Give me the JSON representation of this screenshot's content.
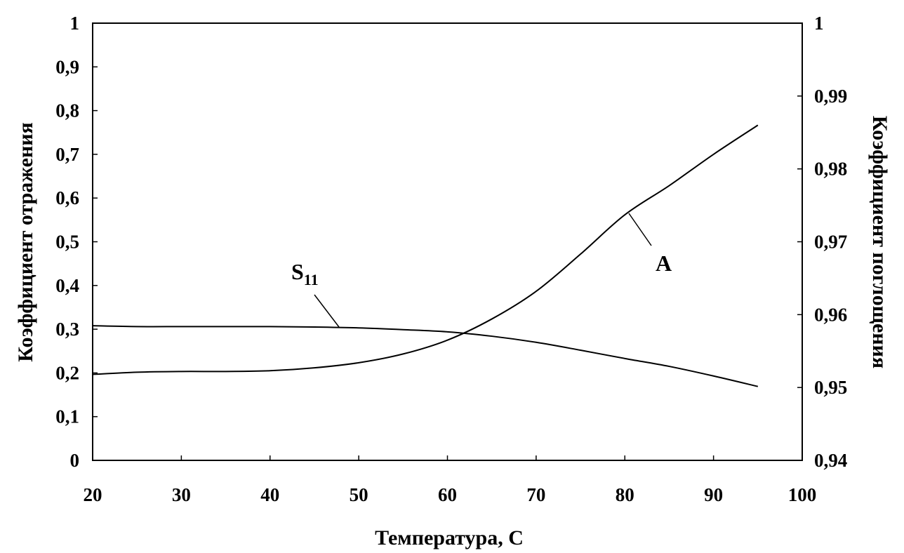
{
  "chart_data": {
    "type": "line",
    "title": "",
    "xlabel": "Температура, С",
    "ylabel": "Коэффициент отражения",
    "y2label": "Коэффициент поглощения",
    "xlim": [
      20,
      100
    ],
    "ylim": [
      0,
      1
    ],
    "y2lim": [
      0.94,
      1
    ],
    "xticks": [
      "20",
      "30",
      "40",
      "50",
      "60",
      "70",
      "80",
      "90",
      "100"
    ],
    "xtick_values": [
      20,
      30,
      40,
      50,
      60,
      70,
      80,
      90,
      100
    ],
    "yticks": [
      "0",
      "0,1",
      "0,2",
      "0,3",
      "0,4",
      "0,5",
      "0,6",
      "0,7",
      "0,8",
      "0,9",
      "1"
    ],
    "ytick_values": [
      0,
      0.1,
      0.2,
      0.3,
      0.4,
      0.5,
      0.6,
      0.7,
      0.8,
      0.9,
      1
    ],
    "y2ticks": [
      "0,94",
      "0,95",
      "0,96",
      "0,97",
      "0,98",
      "0,99",
      "1"
    ],
    "y2tick_values": [
      0.94,
      0.95,
      0.96,
      0.97,
      0.98,
      0.99,
      1
    ],
    "grid": false,
    "series": [
      {
        "name": "S11",
        "label_main": "S",
        "label_sub": "11",
        "axis": "left",
        "x": [
          20,
          25,
          30,
          35,
          40,
          45,
          50,
          55,
          60,
          65,
          70,
          75,
          80,
          85,
          90,
          95
        ],
        "y": [
          0.308,
          0.306,
          0.306,
          0.306,
          0.306,
          0.305,
          0.303,
          0.299,
          0.294,
          0.284,
          0.27,
          0.252,
          0.233,
          0.215,
          0.193,
          0.169
        ]
      },
      {
        "name": "A",
        "label_main": "A",
        "label_sub": "",
        "axis": "right",
        "x": [
          20,
          25,
          30,
          35,
          40,
          45,
          50,
          55,
          60,
          65,
          70,
          75,
          80,
          85,
          90,
          95
        ],
        "y": [
          0.9518,
          0.9521,
          0.9522,
          0.9522,
          0.9523,
          0.9527,
          0.9534,
          0.9546,
          0.9565,
          0.9594,
          0.9632,
          0.9683,
          0.9737,
          0.9777,
          0.982,
          0.986
        ]
      }
    ]
  }
}
